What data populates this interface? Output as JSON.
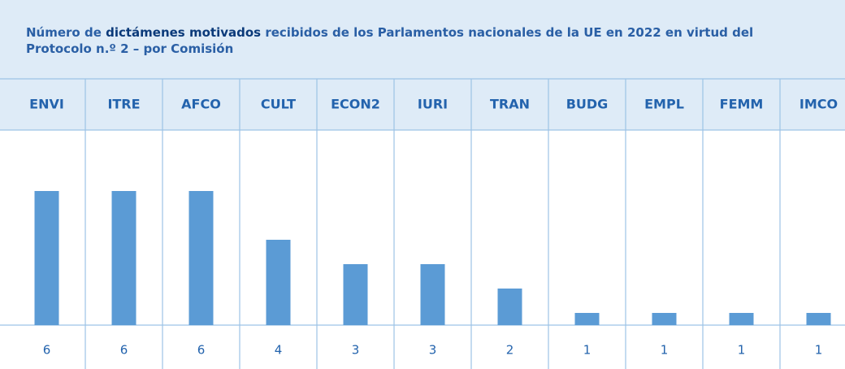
{
  "chart_data": {
    "type": "bar",
    "title_parts": [
      "Número de ",
      "dictámenes motivados",
      " recibidos de los Parlamentos nacionales de la UE en 2022 en virtud del Protocolo n.º 2 – por Comisión"
    ],
    "categories": [
      "ENVI",
      "ITRE",
      "AFCO",
      "CULT",
      "ECON2",
      "IURI",
      "TRAN",
      "BUDG",
      "EMPL",
      "FEMM",
      "IMCO"
    ],
    "values": [
      6,
      6,
      6,
      4,
      3,
      3,
      2,
      1,
      1,
      1,
      1
    ],
    "color": "#5b9bd5",
    "ylim": [
      0.5,
      8.5
    ]
  }
}
